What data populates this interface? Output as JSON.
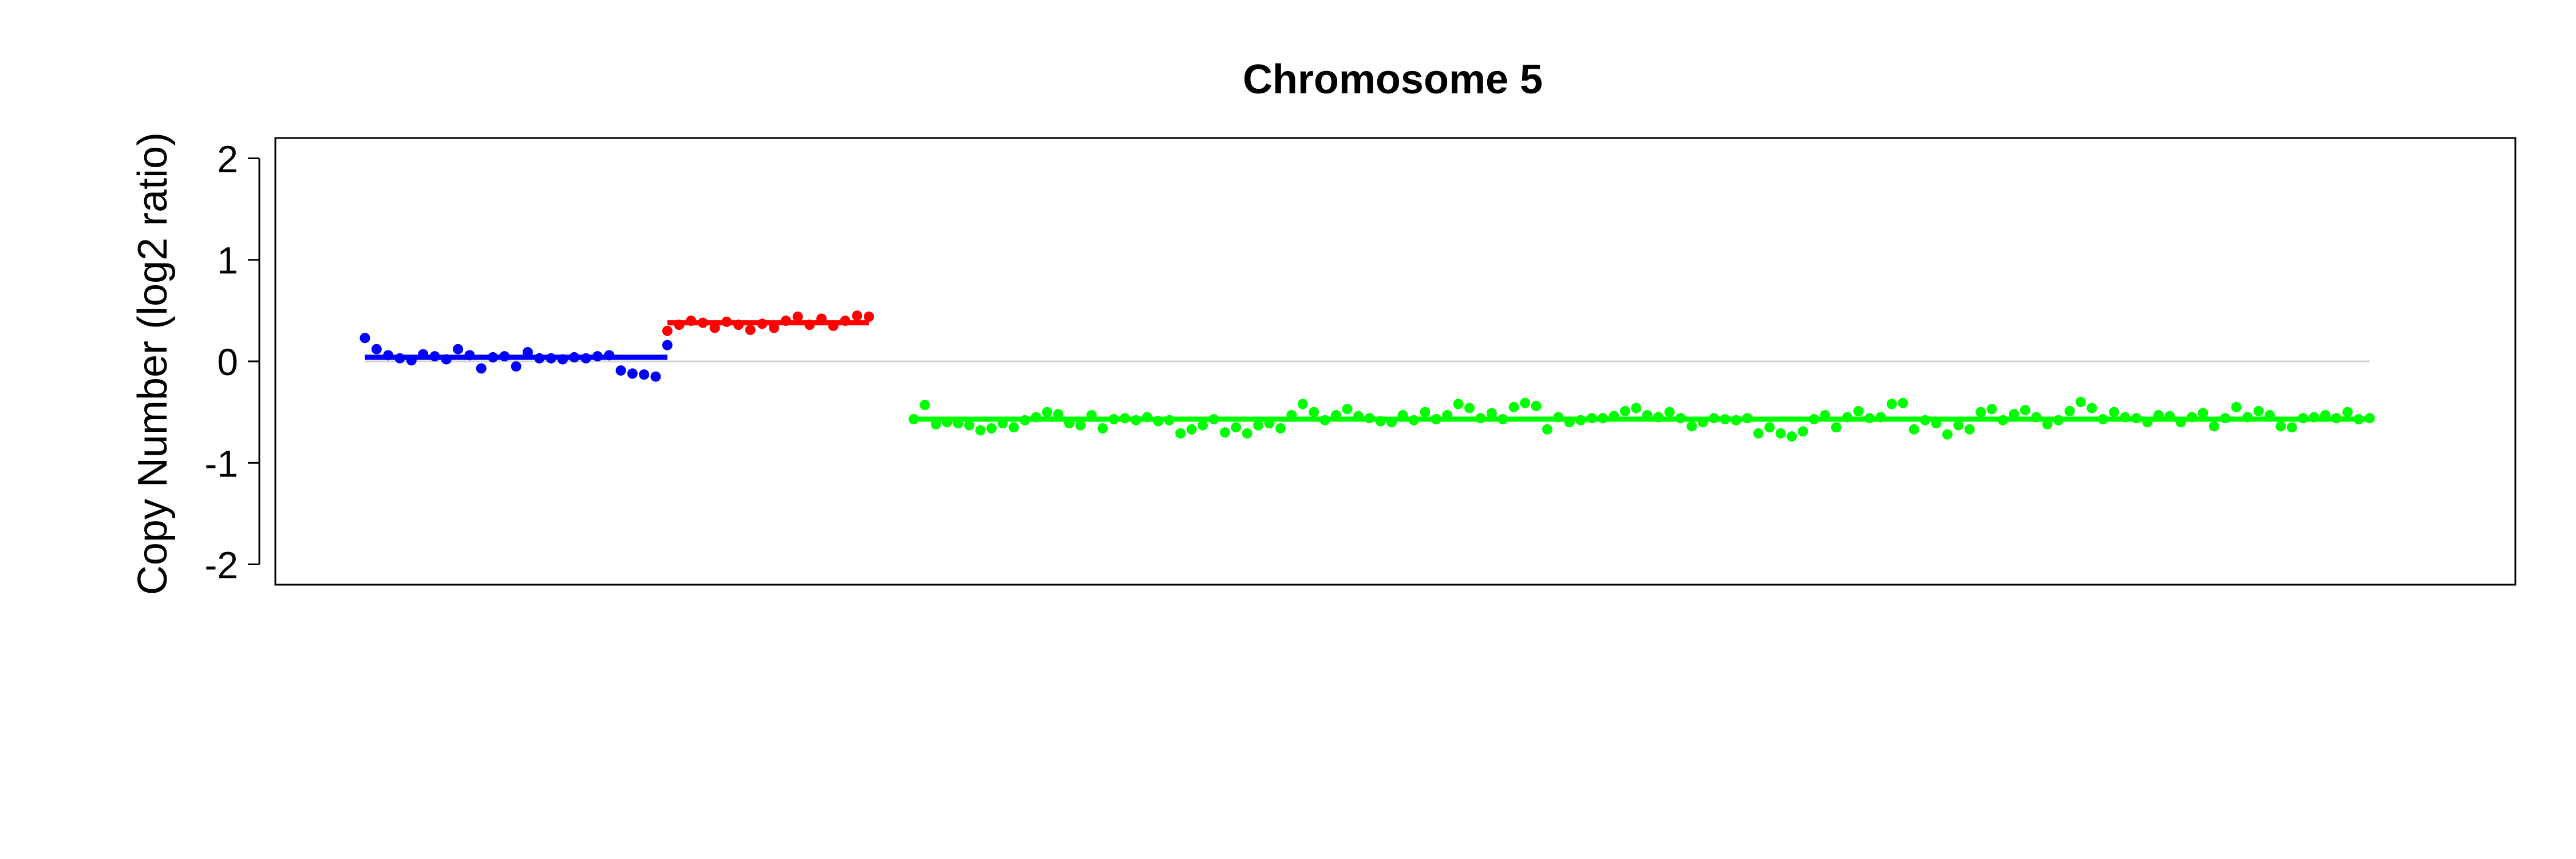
{
  "chart_data": {
    "type": "scatter",
    "title": "Chromosome 5",
    "xlabel": "",
    "ylabel": "Copy Number (log2 ratio)",
    "ylim": [
      -2.2,
      2.2
    ],
    "yticks": [
      2,
      1,
      0,
      -1,
      -2
    ],
    "xlim": [
      -8,
      192
    ],
    "grid": false,
    "reference_line": {
      "y": 0,
      "color": "#d3d3d3"
    },
    "segments": [
      {
        "color": "#0000ff",
        "x_start": 0,
        "x_end": 27,
        "mean": 0.04,
        "points": [
          0.23,
          0.12,
          0.06,
          0.03,
          0.01,
          0.07,
          0.05,
          0.02,
          0.12,
          0.06,
          -0.07,
          0.04,
          0.05,
          -0.05,
          0.09,
          0.03,
          0.03,
          0.02,
          0.04,
          0.03,
          0.05,
          0.06,
          -0.09,
          -0.12,
          -0.13,
          -0.15,
          0.16
        ]
      },
      {
        "color": "#ff0000",
        "x_start": 27,
        "x_end": 45,
        "mean": 0.38,
        "points": [
          0.3,
          0.36,
          0.4,
          0.38,
          0.33,
          0.39,
          0.36,
          0.31,
          0.37,
          0.33,
          0.4,
          0.44,
          0.36,
          0.42,
          0.35,
          0.4,
          0.45,
          0.44
        ]
      },
      {
        "color": "#00ff00",
        "x_start": 49,
        "x_end": 179,
        "mean": -0.57,
        "points": [
          -0.57,
          -0.43,
          -0.62,
          -0.6,
          -0.61,
          -0.63,
          -0.68,
          -0.66,
          -0.61,
          -0.65,
          -0.58,
          -0.55,
          -0.5,
          -0.52,
          -0.61,
          -0.63,
          -0.53,
          -0.66,
          -0.57,
          -0.56,
          -0.58,
          -0.55,
          -0.59,
          -0.58,
          -0.71,
          -0.67,
          -0.63,
          -0.57,
          -0.7,
          -0.65,
          -0.71,
          -0.63,
          -0.61,
          -0.66,
          -0.53,
          -0.42,
          -0.5,
          -0.58,
          -0.53,
          -0.47,
          -0.54,
          -0.56,
          -0.59,
          -0.6,
          -0.53,
          -0.58,
          -0.5,
          -0.57,
          -0.53,
          -0.42,
          -0.46,
          -0.56,
          -0.51,
          -0.57,
          -0.45,
          -0.41,
          -0.44,
          -0.67,
          -0.55,
          -0.6,
          -0.58,
          -0.56,
          -0.56,
          -0.54,
          -0.49,
          -0.46,
          -0.53,
          -0.55,
          -0.5,
          -0.56,
          -0.64,
          -0.6,
          -0.56,
          -0.57,
          -0.58,
          -0.56,
          -0.71,
          -0.65,
          -0.71,
          -0.74,
          -0.69,
          -0.57,
          -0.53,
          -0.65,
          -0.55,
          -0.49,
          -0.56,
          -0.55,
          -0.42,
          -0.41,
          -0.67,
          -0.58,
          -0.61,
          -0.72,
          -0.63,
          -0.67,
          -0.5,
          -0.47,
          -0.58,
          -0.52,
          -0.48,
          -0.55,
          -0.62,
          -0.58,
          -0.49,
          -0.4,
          -0.46,
          -0.57,
          -0.5,
          -0.55,
          -0.56,
          -0.6,
          -0.53,
          -0.54,
          -0.6,
          -0.55,
          -0.51,
          -0.64,
          -0.56,
          -0.45,
          -0.55,
          -0.49,
          -0.53,
          -0.64,
          -0.65,
          -0.56,
          -0.55,
          -0.53,
          -0.56,
          -0.5,
          -0.57,
          -0.56
        ]
      }
    ]
  }
}
